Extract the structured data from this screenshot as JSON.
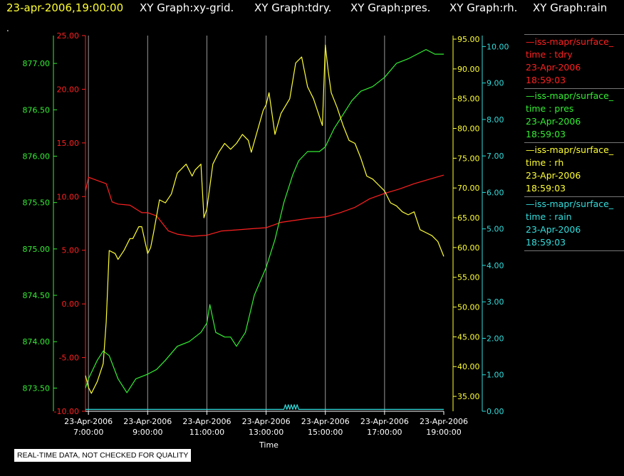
{
  "header": {
    "timestamp": "23-apr-2006,19:00:00",
    "graph_titles": [
      "XY Graph:xy-grid.",
      "XY Graph:tdry.",
      "XY Graph:pres.",
      "XY Graph:rh.",
      "XY Graph:rain"
    ]
  },
  "marker": ".",
  "note": "REAL-TIME DATA, NOT CHECKED FOR QUALITY",
  "legend": [
    {
      "line": "—iss-mapr/surface_",
      "var": "time : tdry",
      "date": "23-Apr-2006",
      "time": "18:59:03",
      "color": "#ff2020"
    },
    {
      "line": "—iss-mapr/surface_",
      "var": "time : pres",
      "date": "23-Apr-2006",
      "time": "18:59:03",
      "color": "#33ee33"
    },
    {
      "line": "—iss-mapr/surface_",
      "var": "time : rh",
      "date": "23-Apr-2006",
      "time": "18:59:03",
      "color": "#ffff33"
    },
    {
      "line": "—iss-mapr/surface_",
      "var": "time : rain",
      "date": "23-Apr-2006",
      "time": "18:59:03",
      "color": "#33dddd"
    }
  ],
  "chart_data": {
    "type": "line",
    "xlabel": "Time",
    "x_ticks": [
      {
        "date": "23-Apr-2006",
        "time": "7:00:00"
      },
      {
        "date": "23-Apr-2006",
        "time": "9:00:00"
      },
      {
        "date": "23-Apr-2006",
        "time": "11:00:00"
      },
      {
        "date": "23-Apr-2006",
        "time": "13:00:00"
      },
      {
        "date": "23-Apr-2006",
        "time": "15:00:00"
      },
      {
        "date": "23-Apr-2006",
        "time": "17:00:00"
      },
      {
        "date": "23-Apr-2006",
        "time": "19:00:00"
      }
    ],
    "xlim_hours": [
      6.9,
      19.0
    ],
    "grid": "vertical",
    "axes": {
      "pres": {
        "color": "#33ee33",
        "side": "left-outer",
        "range": [
          873.25,
          877.3
        ],
        "ticks": [
          "873.50",
          "874.00",
          "874.50",
          "875.00",
          "875.50",
          "876.00",
          "876.50",
          "877.00"
        ]
      },
      "tdry": {
        "color": "#ff2020",
        "side": "left-inner",
        "range": [
          -10,
          25
        ],
        "ticks": [
          "-10.00",
          "-5.00",
          "0.00",
          "5.00",
          "10.00",
          "15.00",
          "20.00",
          "25.00"
        ]
      },
      "rh": {
        "color": "#ffff33",
        "side": "right-inner",
        "range": [
          32.5,
          95.6
        ],
        "ticks": [
          "35.00",
          "40.00",
          "45.00",
          "50.00",
          "55.00",
          "60.00",
          "65.00",
          "70.00",
          "75.00",
          "80.00",
          "85.00",
          "90.00",
          "95.00"
        ]
      },
      "rain": {
        "color": "#33dddd",
        "side": "right-outer",
        "range": [
          0,
          10.3
        ],
        "ticks": [
          "0.00",
          "1.00",
          "2.00",
          "3.00",
          "4.00",
          "5.00",
          "6.00",
          "7.00",
          "8.00",
          "9.00",
          "10.00"
        ]
      }
    },
    "series": [
      {
        "name": "time : tdry",
        "axis": "tdry",
        "color": "#ff2020",
        "x": [
          6.9,
          7.0,
          7.3,
          7.6,
          7.8,
          8.0,
          8.4,
          8.8,
          9.0,
          9.3,
          9.5,
          9.7,
          10.0,
          10.5,
          11.0,
          11.5,
          12.0,
          12.5,
          13.0,
          13.5,
          14.0,
          14.5,
          15.0,
          15.5,
          16.0,
          16.5,
          17.0,
          17.5,
          18.0,
          18.5,
          19.0
        ],
        "y": [
          10.5,
          11.8,
          11.5,
          11.2,
          9.5,
          9.3,
          9.2,
          8.5,
          8.5,
          8.2,
          7.5,
          6.8,
          6.5,
          6.3,
          6.4,
          6.8,
          6.9,
          7.0,
          7.1,
          7.6,
          7.8,
          8.0,
          8.1,
          8.5,
          9.0,
          9.8,
          10.3,
          10.7,
          11.2,
          11.6,
          12.0
        ]
      },
      {
        "name": "time : pres",
        "axis": "pres",
        "color": "#33ee33",
        "x": [
          6.9,
          7.0,
          7.3,
          7.5,
          7.7,
          8.0,
          8.3,
          8.6,
          9.0,
          9.3,
          9.6,
          10.0,
          10.4,
          10.8,
          11.0,
          11.1,
          11.3,
          11.6,
          11.8,
          12.0,
          12.3,
          12.6,
          13.0,
          13.3,
          13.6,
          13.9,
          14.1,
          14.4,
          14.8,
          15.0,
          15.3,
          15.6,
          15.9,
          16.2,
          16.6,
          17.0,
          17.4,
          17.8,
          18.1,
          18.4,
          18.7,
          19.0
        ],
        "y": [
          873.5,
          873.6,
          873.8,
          873.9,
          873.85,
          873.6,
          873.45,
          873.6,
          873.65,
          873.7,
          873.8,
          873.95,
          874.0,
          874.1,
          874.2,
          874.4,
          874.1,
          874.05,
          874.05,
          873.95,
          874.1,
          874.5,
          874.8,
          875.1,
          875.5,
          875.8,
          875.95,
          876.05,
          876.05,
          876.1,
          876.3,
          876.45,
          876.6,
          876.7,
          876.75,
          876.85,
          877.0,
          877.05,
          877.1,
          877.15,
          877.1,
          877.1
        ]
      },
      {
        "name": "time : rh",
        "axis": "rh",
        "color": "#ffff33",
        "x": [
          6.9,
          7.0,
          7.1,
          7.3,
          7.5,
          7.6,
          7.7,
          7.9,
          8.0,
          8.2,
          8.4,
          8.5,
          8.7,
          8.8,
          9.0,
          9.1,
          9.2,
          9.4,
          9.6,
          9.8,
          10.0,
          10.3,
          10.5,
          10.6,
          10.8,
          10.9,
          11.0,
          11.2,
          11.4,
          11.6,
          11.8,
          12.0,
          12.2,
          12.4,
          12.5,
          12.7,
          12.9,
          13.0,
          13.1,
          13.3,
          13.5,
          13.8,
          14.0,
          14.2,
          14.4,
          14.6,
          14.8,
          14.9,
          15.0,
          15.1,
          15.2,
          15.4,
          15.6,
          15.8,
          16.0,
          16.2,
          16.4,
          16.6,
          16.8,
          17.0,
          17.2,
          17.4,
          17.6,
          17.8,
          18.0,
          18.2,
          18.4,
          18.6,
          18.8,
          19.0
        ],
        "y": [
          38.5,
          36.5,
          35.5,
          37.5,
          40.5,
          47.5,
          59.5,
          59.0,
          58.0,
          59.5,
          61.5,
          61.5,
          63.5,
          63.5,
          59.0,
          60.0,
          62.5,
          68.0,
          67.5,
          69.0,
          72.5,
          74.0,
          72.0,
          73.0,
          74.0,
          65.0,
          66.5,
          74.0,
          76.0,
          77.5,
          76.5,
          77.5,
          79.0,
          78.0,
          76.0,
          79.5,
          83.0,
          84.0,
          86.0,
          79.0,
          82.5,
          85.0,
          91.0,
          92.0,
          87.0,
          85.0,
          82.0,
          80.5,
          94.0,
          89.5,
          86.0,
          83.5,
          80.5,
          78.0,
          77.5,
          75.0,
          72.0,
          71.5,
          70.5,
          69.5,
          67.5,
          67.0,
          66.0,
          65.5,
          66.0,
          63.0,
          62.5,
          62.0,
          61.0,
          58.5
        ]
      },
      {
        "name": "time : rain",
        "axis": "rain",
        "color": "#33dddd",
        "x": [
          6.9,
          13.6,
          13.65,
          13.7,
          13.75,
          13.8,
          13.85,
          13.9,
          13.95,
          14.0,
          14.05,
          14.1,
          14.2,
          19.0
        ],
        "y": [
          0.05,
          0.05,
          0.18,
          0.05,
          0.18,
          0.05,
          0.18,
          0.05,
          0.18,
          0.05,
          0.18,
          0.05,
          0.05,
          0.05
        ]
      }
    ]
  }
}
